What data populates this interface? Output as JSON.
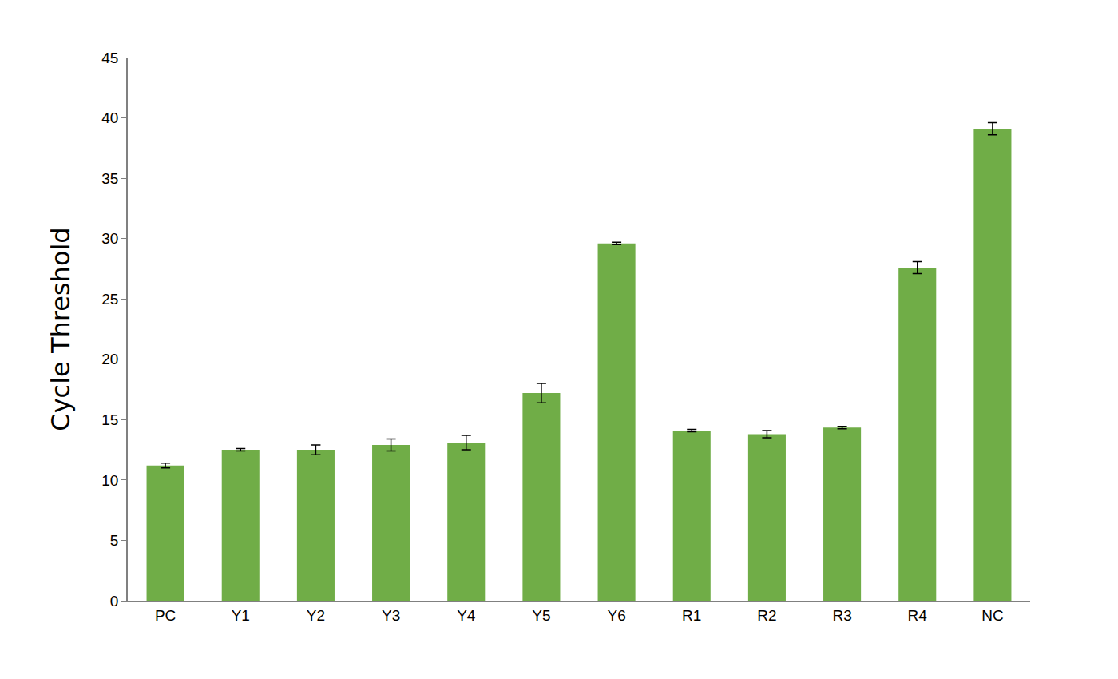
{
  "chart_data": {
    "type": "bar",
    "y_label": "Cycle Threshold",
    "categories": [
      "PC",
      "Y1",
      "Y2",
      "Y3",
      "Y4",
      "Y5",
      "Y6",
      "R1",
      "R2",
      "R3",
      "R4",
      "NC"
    ],
    "values": [
      11.2,
      12.5,
      12.5,
      12.9,
      13.1,
      17.2,
      29.6,
      14.1,
      13.8,
      14.35,
      27.6,
      39.1
    ],
    "errors": [
      0.2,
      0.1,
      0.4,
      0.5,
      0.6,
      0.8,
      0.1,
      0.1,
      0.3,
      0.1,
      0.5,
      0.5
    ],
    "color": "#70ad47",
    "ylim": [
      0,
      45
    ],
    "yticks": [
      0,
      5,
      10,
      15,
      20,
      25,
      30,
      35,
      40,
      45
    ],
    "grid": false
  }
}
